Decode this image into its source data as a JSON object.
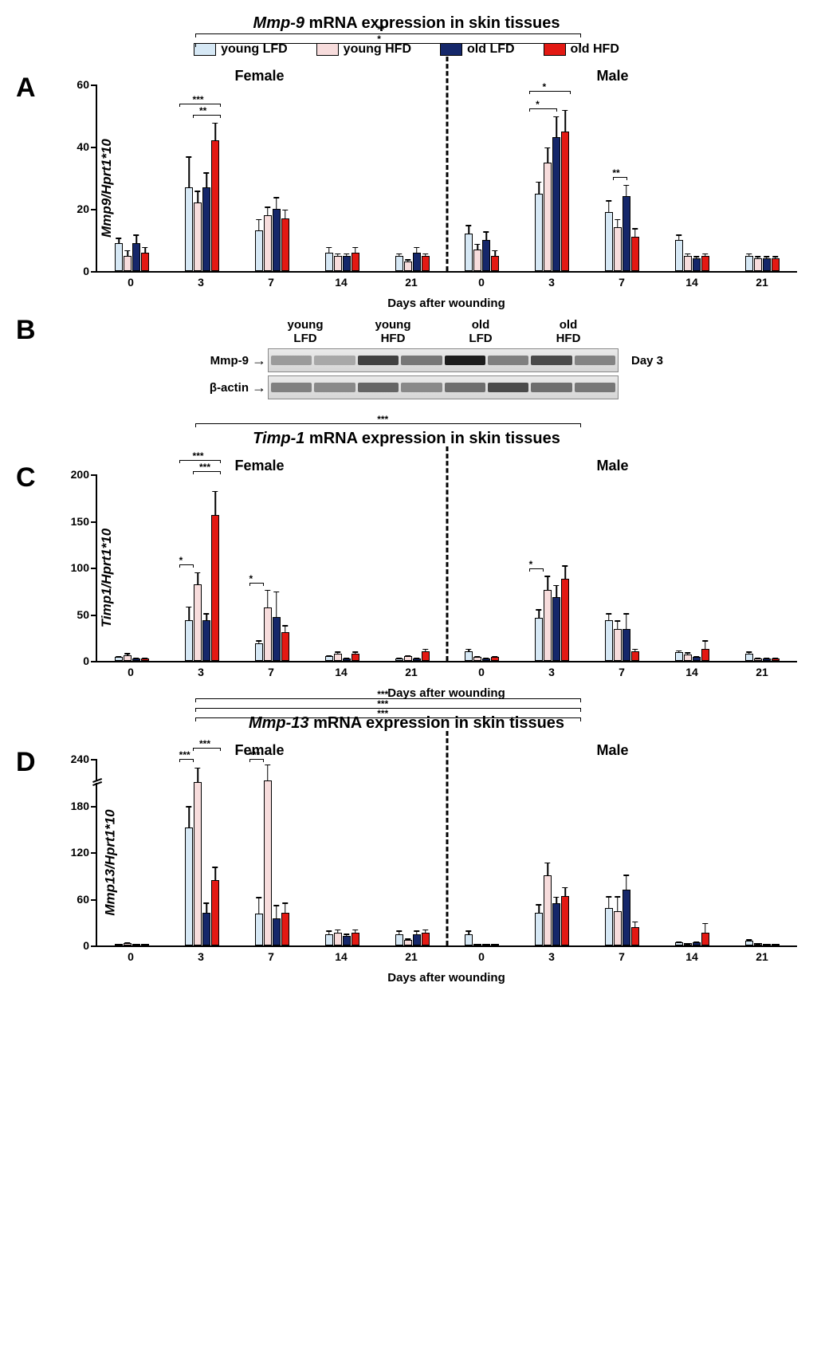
{
  "colors": {
    "young_lfd": "#d6e8f5",
    "young_hfd": "#f7dcdc",
    "old_lfd": "#15276a",
    "old_hfd": "#e31913",
    "axis": "#000000",
    "background": "#ffffff"
  },
  "legend": {
    "items": [
      {
        "key": "young_lfd",
        "label": "young LFD"
      },
      {
        "key": "young_hfd",
        "label": "young HFD"
      },
      {
        "key": "old_lfd",
        "label": "old LFD"
      },
      {
        "key": "old_hfd",
        "label": "old HFD"
      }
    ]
  },
  "labels": {
    "female": "Female",
    "male": "Male",
    "x_axis": "Days after wounding",
    "days": [
      "0",
      "3",
      "7",
      "14",
      "21"
    ]
  },
  "panelA": {
    "letter": "A",
    "title_prefix": "Mmp-9",
    "title_rest": " mRNA expression in skin tissues",
    "ylabel": "Mmp9/Hprt1*10",
    "ylim": [
      0,
      60
    ],
    "yticks": [
      0,
      20,
      40,
      60
    ],
    "female": {
      "0": {
        "young_lfd": [
          9,
          2
        ],
        "young_hfd": [
          5,
          2
        ],
        "old_lfd": [
          9,
          3
        ],
        "old_hfd": [
          6,
          2
        ]
      },
      "3": {
        "young_lfd": [
          27,
          10
        ],
        "young_hfd": [
          22,
          4
        ],
        "old_lfd": [
          27,
          5
        ],
        "old_hfd": [
          42,
          6
        ]
      },
      "7": {
        "young_lfd": [
          13,
          4
        ],
        "young_hfd": [
          18,
          3
        ],
        "old_lfd": [
          20,
          4
        ],
        "old_hfd": [
          17,
          3
        ]
      },
      "14": {
        "young_lfd": [
          6,
          2
        ],
        "young_hfd": [
          5,
          1
        ],
        "old_lfd": [
          5,
          1
        ],
        "old_hfd": [
          6,
          2
        ]
      },
      "21": {
        "young_lfd": [
          5,
          1
        ],
        "young_hfd": [
          3,
          1
        ],
        "old_lfd": [
          6,
          2
        ],
        "old_hfd": [
          5,
          1
        ]
      }
    },
    "male": {
      "0": {
        "young_lfd": [
          12,
          3
        ],
        "young_hfd": [
          7,
          2
        ],
        "old_lfd": [
          10,
          3
        ],
        "old_hfd": [
          5,
          2
        ]
      },
      "3": {
        "young_lfd": [
          25,
          4
        ],
        "young_hfd": [
          35,
          5
        ],
        "old_lfd": [
          43,
          7
        ],
        "old_hfd": [
          45,
          7
        ]
      },
      "7": {
        "young_lfd": [
          19,
          4
        ],
        "young_hfd": [
          14,
          3
        ],
        "old_lfd": [
          24,
          4
        ],
        "old_hfd": [
          11,
          3
        ]
      },
      "14": {
        "young_lfd": [
          10,
          2
        ],
        "young_hfd": [
          5,
          1
        ],
        "old_lfd": [
          4,
          1
        ],
        "old_hfd": [
          5,
          1
        ]
      },
      "21": {
        "young_lfd": [
          5,
          1
        ],
        "young_hfd": [
          4,
          1
        ],
        "old_lfd": [
          4,
          1
        ],
        "old_hfd": [
          4,
          1
        ]
      }
    },
    "sig": [
      {
        "text": "***",
        "half": "female",
        "day": "3",
        "from": 0,
        "to": 3,
        "level": 1
      },
      {
        "text": "**",
        "half": "female",
        "day": "3",
        "from": 1,
        "to": 3,
        "level": 0
      },
      {
        "text": "**",
        "half": null,
        "cross": true,
        "level": 3
      },
      {
        "text": "*",
        "half": null,
        "cross": true,
        "level": 2
      },
      {
        "text": "*",
        "half": "male",
        "day": "3",
        "from": 0,
        "to": 3,
        "level": 1
      },
      {
        "text": "*",
        "half": "male",
        "day": "3",
        "from": 0,
        "to": 2,
        "level": 0
      },
      {
        "text": "**",
        "half": "male",
        "day": "7",
        "from": 1,
        "to": 2,
        "level": 0
      }
    ]
  },
  "panelB": {
    "letter": "B",
    "headers": [
      "young\nLFD",
      "young\nHFD",
      "old\nLFD",
      "old\nHFD"
    ],
    "row1_label": "Mmp-9",
    "row2_label": "β-actin",
    "day_label": "Day 3",
    "mmp9_intensities": [
      0.25,
      0.18,
      0.75,
      0.45,
      0.95,
      0.4,
      0.7,
      0.38
    ],
    "actin_intensities": [
      0.4,
      0.35,
      0.55,
      0.35,
      0.5,
      0.7,
      0.5,
      0.45
    ]
  },
  "panelC": {
    "letter": "C",
    "title_prefix": "Timp-1",
    "title_rest": " mRNA expression in skin tissues",
    "ylabel": "Timp1/Hprt1*10",
    "ylim": [
      0,
      200
    ],
    "yticks": [
      0,
      50,
      100,
      150,
      200
    ],
    "female": {
      "0": {
        "young_lfd": [
          4,
          2
        ],
        "young_hfd": [
          6,
          3
        ],
        "old_lfd": [
          3,
          1
        ],
        "old_hfd": [
          3,
          1
        ]
      },
      "3": {
        "young_lfd": [
          44,
          15
        ],
        "young_hfd": [
          82,
          14
        ],
        "old_lfd": [
          44,
          8
        ],
        "old_hfd": [
          156,
          27
        ]
      },
      "7": {
        "young_lfd": [
          19,
          4
        ],
        "young_hfd": [
          57,
          20
        ],
        "old_lfd": [
          47,
          28
        ],
        "old_hfd": [
          31,
          8
        ]
      },
      "14": {
        "young_lfd": [
          5,
          2
        ],
        "young_hfd": [
          8,
          3
        ],
        "old_lfd": [
          3,
          1
        ],
        "old_hfd": [
          8,
          3
        ]
      },
      "21": {
        "young_lfd": [
          3,
          1
        ],
        "young_hfd": [
          5,
          2
        ],
        "old_lfd": [
          3,
          1
        ],
        "old_hfd": [
          10,
          4
        ]
      }
    },
    "male": {
      "0": {
        "young_lfd": [
          10,
          4
        ],
        "young_hfd": [
          4,
          2
        ],
        "old_lfd": [
          3,
          1
        ],
        "old_hfd": [
          4,
          2
        ]
      },
      "3": {
        "young_lfd": [
          46,
          10
        ],
        "young_hfd": [
          76,
          16
        ],
        "old_lfd": [
          68,
          14
        ],
        "old_hfd": [
          88,
          15
        ]
      },
      "7": {
        "young_lfd": [
          44,
          8
        ],
        "young_hfd": [
          34,
          10
        ],
        "old_lfd": [
          34,
          18
        ],
        "old_hfd": [
          10,
          4
        ]
      },
      "14": {
        "young_lfd": [
          9,
          3
        ],
        "young_hfd": [
          7,
          3
        ],
        "old_lfd": [
          4,
          2
        ],
        "old_hfd": [
          13,
          10
        ]
      },
      "21": {
        "young_lfd": [
          8,
          3
        ],
        "young_hfd": [
          3,
          1
        ],
        "old_lfd": [
          3,
          1
        ],
        "old_hfd": [
          3,
          1
        ]
      }
    },
    "sig": [
      {
        "text": "*",
        "half": "female",
        "day": "3",
        "from": 0,
        "to": 1,
        "level": 0
      },
      {
        "text": "***",
        "half": "female",
        "day": "3",
        "from": 1,
        "to": 3,
        "level": 1
      },
      {
        "text": "***",
        "half": "female",
        "day": "3",
        "from": 0,
        "to": 3,
        "level": 2
      },
      {
        "text": "*",
        "half": "female",
        "day": "7",
        "from": 0,
        "to": 1,
        "level": 0
      },
      {
        "text": "***",
        "half": null,
        "cross": true,
        "level": 3
      },
      {
        "text": "*",
        "half": "male",
        "day": "3",
        "from": 0,
        "to": 1,
        "level": 0
      }
    ]
  },
  "panelD": {
    "letter": "D",
    "title_prefix": "Mmp-13",
    "title_rest": " mRNA expression in skin tissues",
    "ylabel": "Mmp13/Hprt1*10",
    "ylim": [
      0,
      240
    ],
    "yticks": [
      0,
      60,
      120,
      180,
      240
    ],
    "axis_break": true,
    "female": {
      "0": {
        "young_lfd": [
          1,
          1
        ],
        "young_hfd": [
          3,
          2
        ],
        "old_lfd": [
          1,
          1
        ],
        "old_hfd": [
          1,
          1
        ]
      },
      "3": {
        "young_lfd": [
          152,
          28
        ],
        "young_hfd": [
          210,
          20
        ],
        "old_lfd": [
          42,
          14
        ],
        "old_hfd": [
          84,
          18
        ]
      },
      "7": {
        "young_lfd": [
          41,
          22
        ],
        "young_hfd": [
          212,
          22
        ],
        "old_lfd": [
          35,
          18
        ],
        "old_hfd": [
          42,
          14
        ]
      },
      "14": {
        "young_lfd": [
          14,
          6
        ],
        "young_hfd": [
          16,
          6
        ],
        "old_lfd": [
          12,
          4
        ],
        "old_hfd": [
          16,
          6
        ]
      },
      "21": {
        "young_lfd": [
          14,
          6
        ],
        "young_hfd": [
          7,
          3
        ],
        "old_lfd": [
          14,
          6
        ],
        "old_hfd": [
          16,
          6
        ]
      }
    },
    "male": {
      "0": {
        "young_lfd": [
          14,
          6
        ],
        "young_hfd": [
          2,
          1
        ],
        "old_lfd": [
          2,
          1
        ],
        "old_hfd": [
          1,
          1
        ]
      },
      "3": {
        "young_lfd": [
          42,
          12
        ],
        "young_hfd": [
          90,
          18
        ],
        "old_lfd": [
          54,
          10
        ],
        "old_hfd": [
          64,
          12
        ]
      },
      "7": {
        "young_lfd": [
          48,
          16
        ],
        "young_hfd": [
          44,
          20
        ],
        "old_lfd": [
          72,
          20
        ],
        "old_hfd": [
          24,
          8
        ]
      },
      "14": {
        "young_lfd": [
          4,
          2
        ],
        "young_hfd": [
          3,
          1
        ],
        "old_lfd": [
          4,
          2
        ],
        "old_hfd": [
          16,
          14
        ]
      },
      "21": {
        "young_lfd": [
          6,
          3
        ],
        "young_hfd": [
          3,
          1
        ],
        "old_lfd": [
          2,
          1
        ],
        "old_hfd": [
          2,
          1
        ]
      }
    },
    "sig": [
      {
        "text": "***",
        "half": "female",
        "day": "3",
        "from": 0,
        "to": 1,
        "level": 0
      },
      {
        "text": "***",
        "half": "female",
        "day": "3",
        "from": 1,
        "to": 3,
        "level": 1
      },
      {
        "text": "***",
        "half": "female",
        "day": "7",
        "from": 0,
        "to": 1,
        "level": 0
      },
      {
        "text": "***",
        "half": null,
        "cross": true,
        "level": 2
      },
      {
        "text": "***",
        "half": null,
        "cross": true,
        "level": 3
      },
      {
        "text": "***",
        "half": null,
        "cross": true,
        "level": 4
      }
    ]
  }
}
